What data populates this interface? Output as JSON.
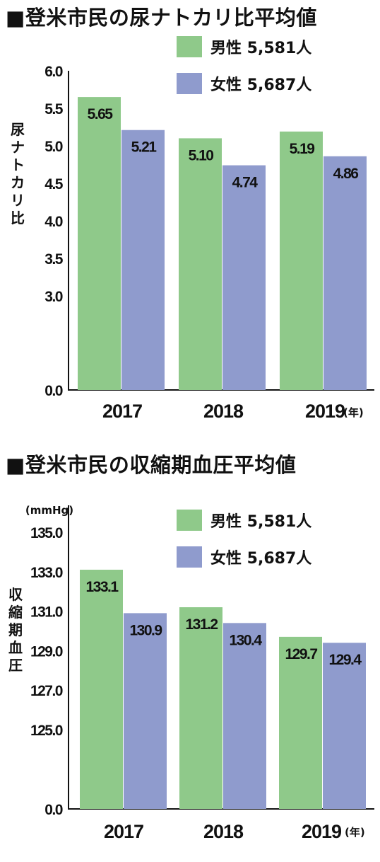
{
  "chart_data": [
    {
      "type": "bar",
      "title": "■登米市民の尿ナトカリ比平均値",
      "ylabel": "尿ナトカリ比",
      "xlabel": "",
      "x_unit": "(年)",
      "categories": [
        "2017",
        "2018",
        "2019"
      ],
      "series": [
        {
          "name": "男性 5,581人",
          "values": [
            5.65,
            5.1,
            5.19
          ],
          "labels": [
            "5.65",
            "5.10",
            "5.19"
          ],
          "color": "#8fc98a"
        },
        {
          "name": "女性 5,687人",
          "values": [
            5.21,
            4.74,
            4.86
          ],
          "labels": [
            "5.21",
            "4.74",
            "4.86"
          ],
          "color": "#8f9bcd"
        }
      ],
      "y_ticks": [
        "0.0",
        "3.0",
        "3.5",
        "4.0",
        "4.5",
        "5.0",
        "5.5",
        "6.0"
      ],
      "y_broken_axis": true,
      "ylim": [
        0,
        6.0
      ],
      "grid": false,
      "legend": "top-right"
    },
    {
      "type": "bar",
      "title": "■登米市民の収縮期血圧平均値",
      "ylabel": "収縮期血圧",
      "xlabel": "",
      "y_unit": "(mmHg)",
      "x_unit": "(年)",
      "categories": [
        "2017",
        "2018",
        "2019"
      ],
      "series": [
        {
          "name": "男性 5,581人",
          "values": [
            133.1,
            131.2,
            129.7
          ],
          "labels": [
            "133.1",
            "131.2",
            "129.7"
          ],
          "color": "#8fc98a"
        },
        {
          "name": "女性 5,687人",
          "values": [
            130.9,
            130.4,
            129.4
          ],
          "labels": [
            "130.9",
            "130.4",
            "129.4"
          ],
          "color": "#8f9bcd"
        }
      ],
      "y_ticks": [
        "0.0",
        "125.0",
        "127.0",
        "129.0",
        "131.0",
        "133.0",
        "135.0"
      ],
      "y_broken_axis": true,
      "ylim": [
        0,
        135.0
      ],
      "grid": false,
      "legend": "top-right"
    }
  ]
}
